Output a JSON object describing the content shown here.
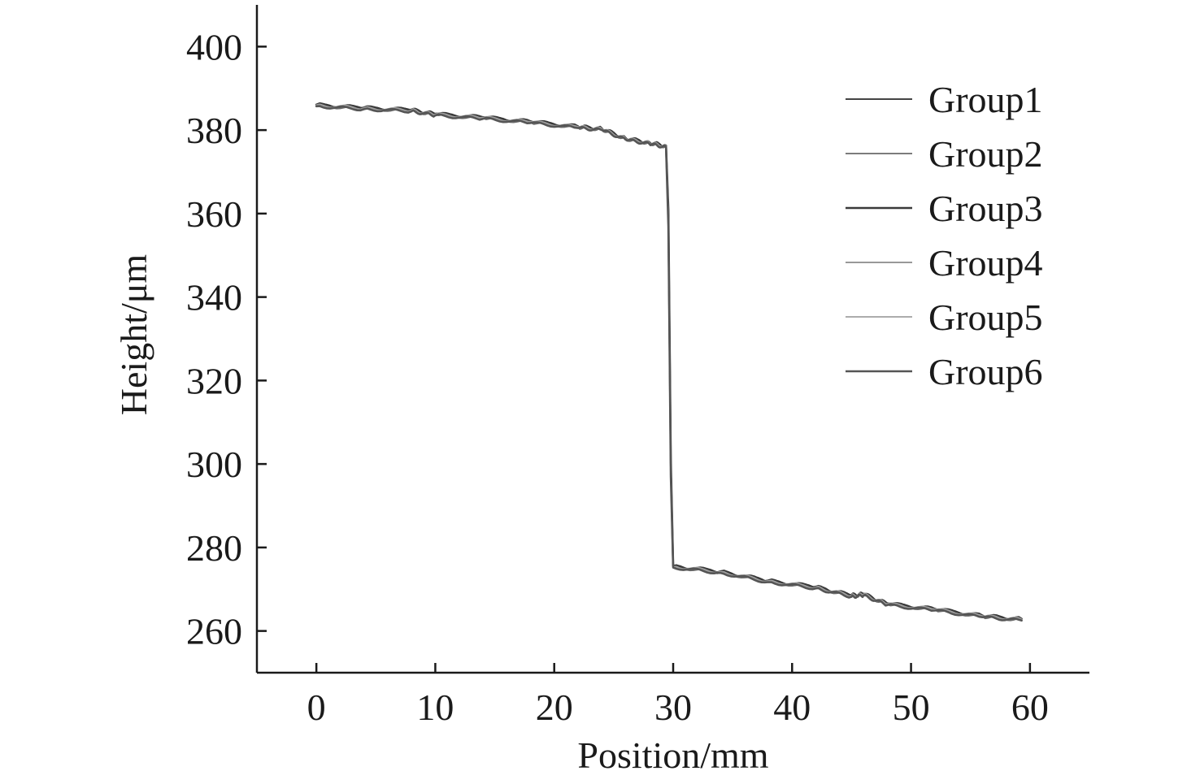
{
  "chart_data": {
    "type": "line",
    "title": "",
    "xlabel": "Position/mm",
    "ylabel": "Height/μm",
    "xlim": [
      -5,
      65
    ],
    "ylim": [
      250,
      410
    ],
    "xticks": [
      0,
      10,
      20,
      30,
      40,
      50,
      60
    ],
    "yticks": [
      260,
      280,
      300,
      320,
      340,
      360,
      380,
      400
    ],
    "grid": false,
    "legend_position": "top-right",
    "series": [
      {
        "name": "Group1",
        "color": "#2a2a2a",
        "x": [
          0,
          4,
          8,
          10,
          14,
          18,
          22,
          24,
          26,
          28,
          29.4,
          29.6,
          29.8,
          30,
          34,
          38,
          42,
          45,
          46,
          48,
          52,
          56,
          59.3
        ],
        "y": [
          386,
          385.3,
          384.8,
          383.8,
          383,
          382,
          380.8,
          380.3,
          378,
          377,
          376.2,
          360,
          300,
          275.5,
          274.2,
          272,
          270.5,
          268.5,
          268.8,
          266.5,
          265.2,
          263.6,
          262.8
        ]
      },
      {
        "name": "Group2",
        "color": "#6a6a6a",
        "x": [
          0,
          4,
          8,
          10,
          14,
          18,
          22,
          24,
          26,
          28,
          29.4,
          29.6,
          29.8,
          30,
          34,
          38,
          42,
          45,
          46,
          48,
          52,
          56,
          59.3
        ],
        "y": [
          385.8,
          385.1,
          384.6,
          383.6,
          382.8,
          381.8,
          380.6,
          380.1,
          377.8,
          376.8,
          376,
          358,
          298,
          275.3,
          274,
          271.8,
          270.3,
          268.3,
          268.6,
          266.3,
          265,
          263.4,
          262.6
        ]
      },
      {
        "name": "Group3",
        "color": "#3a3a3a",
        "x": [
          0,
          4,
          8,
          10,
          14,
          18,
          22,
          24,
          26,
          28,
          29.4,
          29.6,
          29.8,
          30,
          34,
          38,
          42,
          45,
          46,
          48,
          52,
          56,
          59.3
        ],
        "y": [
          386.1,
          385.4,
          384.9,
          383.9,
          383.1,
          382.1,
          380.9,
          380.4,
          378.1,
          377.1,
          376.3,
          361,
          301,
          275.6,
          274.3,
          272.1,
          270.6,
          268.6,
          268.9,
          266.6,
          265.3,
          263.7,
          262.9
        ]
      },
      {
        "name": "Group4",
        "color": "#8a8a8a",
        "x": [
          0,
          4,
          8,
          10,
          14,
          18,
          22,
          24,
          26,
          28,
          29.4,
          29.6,
          29.8,
          30,
          34,
          38,
          42,
          45,
          46,
          48,
          52,
          56,
          59.3
        ],
        "y": [
          385.9,
          385.2,
          384.7,
          383.7,
          382.9,
          381.9,
          380.7,
          380.2,
          377.9,
          376.9,
          376.1,
          359,
          299,
          275.4,
          274.1,
          271.9,
          270.4,
          268.4,
          268.7,
          266.4,
          265.1,
          263.5,
          262.7
        ]
      },
      {
        "name": "Group5",
        "color": "#a0a0a0",
        "x": [
          0,
          4,
          8,
          10,
          14,
          18,
          22,
          24,
          26,
          28,
          29.4,
          29.6,
          29.8,
          30,
          34,
          38,
          42,
          45,
          46,
          48,
          52,
          56,
          59.3
        ],
        "y": [
          386,
          385.3,
          384.8,
          383.8,
          383,
          382,
          380.8,
          380.3,
          378,
          377,
          376.2,
          360,
          300,
          275.5,
          274.2,
          272,
          270.5,
          268.5,
          268.8,
          266.5,
          265.2,
          263.6,
          262.8
        ]
      },
      {
        "name": "Group6",
        "color": "#555555",
        "x": [
          0,
          4,
          8,
          10,
          14,
          18,
          22,
          24,
          26,
          28,
          29.4,
          29.6,
          29.8,
          30,
          34,
          38,
          42,
          45,
          46,
          48,
          52,
          56,
          59.3
        ],
        "y": [
          385.7,
          385,
          384.5,
          383.5,
          382.7,
          381.7,
          380.5,
          380,
          377.7,
          376.7,
          375.9,
          357,
          297,
          275.2,
          273.9,
          271.7,
          270.2,
          268.2,
          268.5,
          266.2,
          264.9,
          263.3,
          262.5
        ]
      }
    ]
  }
}
